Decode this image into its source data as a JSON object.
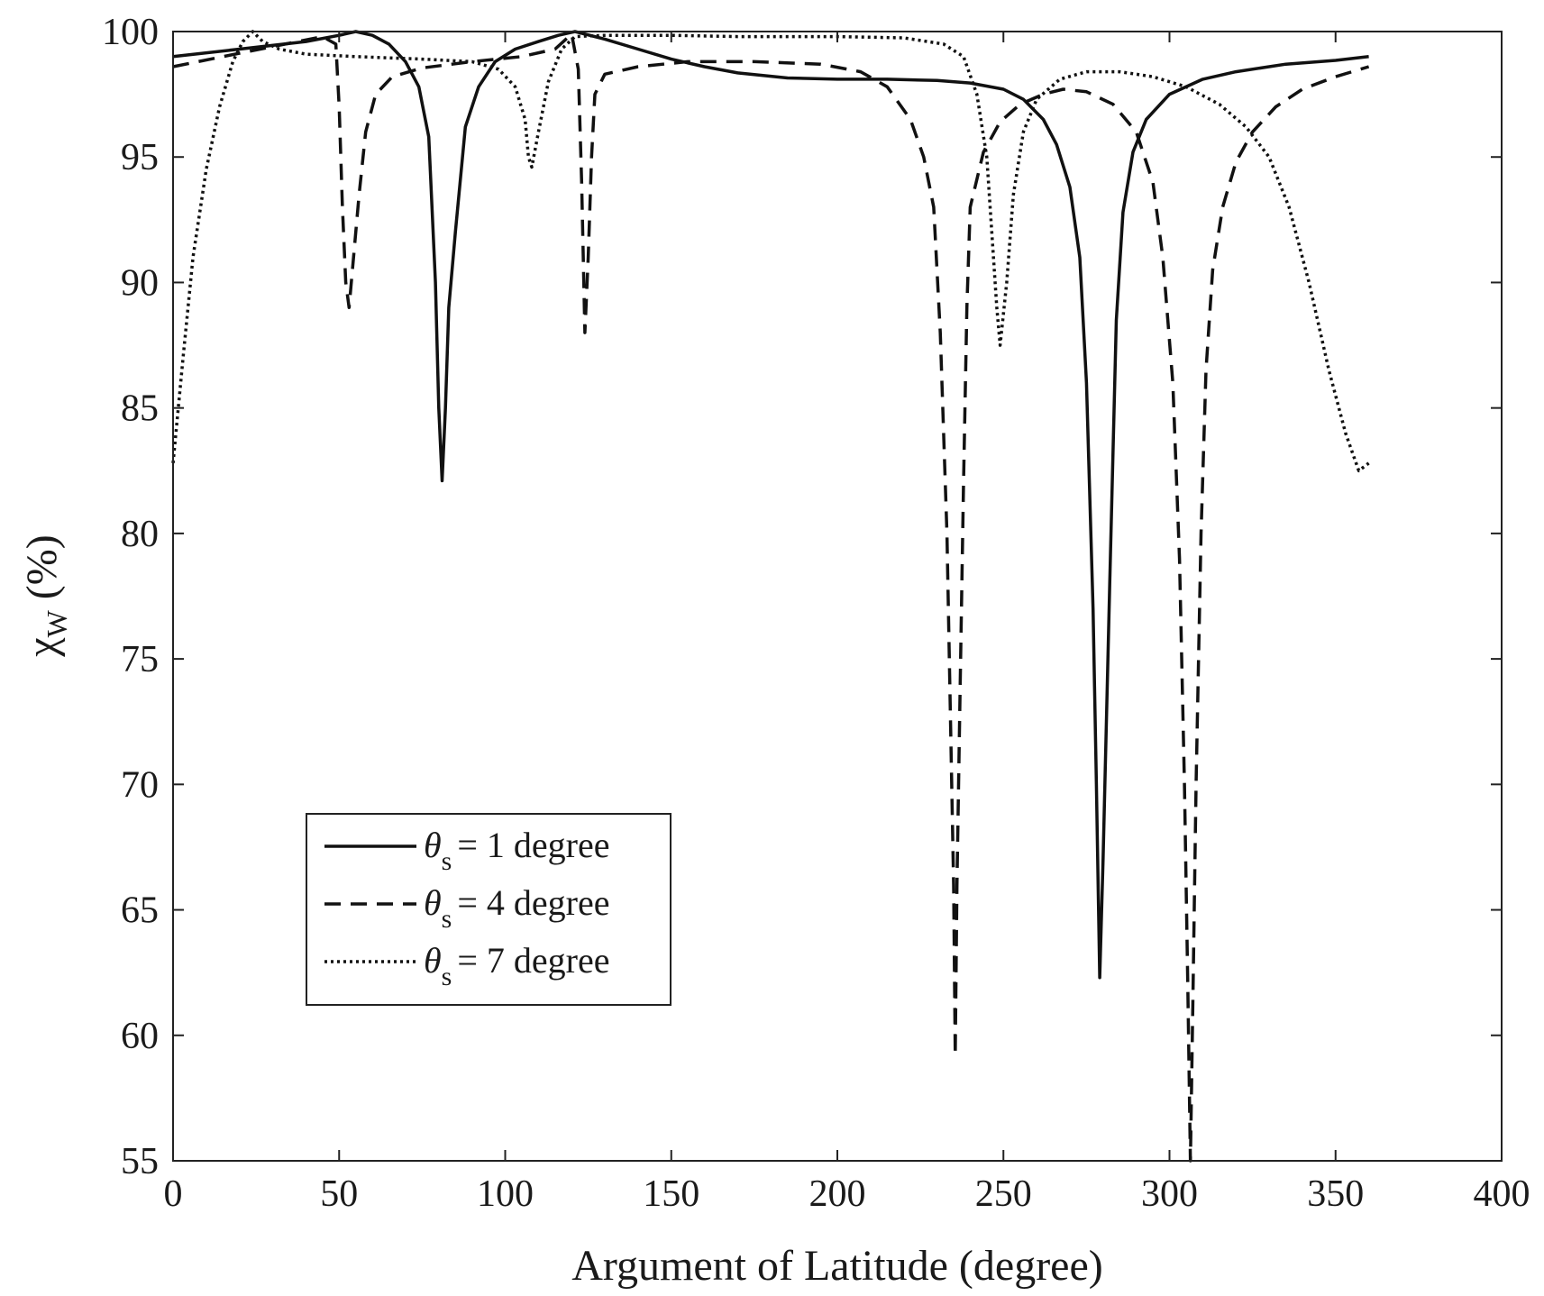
{
  "chart_data": {
    "type": "line",
    "xlabel": "Argument of Latitude (degree)",
    "ylabel": {
      "symbol": "χ",
      "subscript": "W",
      "unit": "(%)"
    },
    "xlim": [
      0,
      400
    ],
    "ylim": [
      55,
      100
    ],
    "xticks": [
      0,
      50,
      100,
      150,
      200,
      250,
      300,
      350,
      400
    ],
    "yticks": [
      55,
      60,
      65,
      70,
      75,
      80,
      85,
      90,
      95,
      100
    ],
    "grid": false,
    "legend_position": "lower-left",
    "series": [
      {
        "name": "= 1 degree",
        "legend_symbol": "θ",
        "legend_subscript": "s",
        "style": "solid",
        "points": [
          [
            0,
            99.0
          ],
          [
            20,
            99.3
          ],
          [
            40,
            99.6
          ],
          [
            50,
            99.85
          ],
          [
            55,
            100.0
          ],
          [
            60,
            99.85
          ],
          [
            65,
            99.5
          ],
          [
            70,
            98.8
          ],
          [
            74,
            97.8
          ],
          [
            77,
            95.8
          ],
          [
            79,
            90.0
          ],
          [
            80,
            85.0
          ],
          [
            81,
            82.1
          ],
          [
            82,
            85.0
          ],
          [
            83,
            89.0
          ],
          [
            85,
            92.0
          ],
          [
            88,
            96.2
          ],
          [
            92,
            97.8
          ],
          [
            97,
            98.8
          ],
          [
            103,
            99.3
          ],
          [
            110,
            99.6
          ],
          [
            116,
            99.85
          ],
          [
            121,
            100.0
          ],
          [
            130,
            99.7
          ],
          [
            140,
            99.3
          ],
          [
            150,
            98.9
          ],
          [
            160,
            98.6
          ],
          [
            170,
            98.35
          ],
          [
            185,
            98.15
          ],
          [
            200,
            98.1
          ],
          [
            215,
            98.1
          ],
          [
            230,
            98.05
          ],
          [
            240,
            97.95
          ],
          [
            250,
            97.7
          ],
          [
            256,
            97.3
          ],
          [
            262,
            96.5
          ],
          [
            266,
            95.5
          ],
          [
            270,
            93.8
          ],
          [
            273,
            91.0
          ],
          [
            275,
            86.0
          ],
          [
            277,
            77.0
          ],
          [
            278,
            70.0
          ],
          [
            279,
            62.3
          ],
          [
            280,
            67.0
          ],
          [
            282,
            78.0
          ],
          [
            284,
            88.5
          ],
          [
            286,
            92.8
          ],
          [
            289,
            95.2
          ],
          [
            293,
            96.5
          ],
          [
            300,
            97.5
          ],
          [
            310,
            98.1
          ],
          [
            320,
            98.4
          ],
          [
            335,
            98.7
          ],
          [
            350,
            98.85
          ],
          [
            360,
            99.0
          ]
        ]
      },
      {
        "name": "= 4 degree",
        "legend_symbol": "θ",
        "legend_subscript": "s",
        "style": "dashed",
        "points": [
          [
            0,
            98.6
          ],
          [
            15,
            99.0
          ],
          [
            30,
            99.4
          ],
          [
            45,
            99.8
          ],
          [
            49,
            99.5
          ],
          [
            50,
            97.0
          ],
          [
            51,
            93.0
          ],
          [
            52,
            90.0
          ],
          [
            53,
            89.0
          ],
          [
            54,
            90.5
          ],
          [
            56,
            93.5
          ],
          [
            58,
            96.0
          ],
          [
            61,
            97.5
          ],
          [
            66,
            98.2
          ],
          [
            75,
            98.55
          ],
          [
            90,
            98.8
          ],
          [
            105,
            99.0
          ],
          [
            115,
            99.3
          ],
          [
            120,
            99.9
          ],
          [
            122,
            98.5
          ],
          [
            123,
            94.0
          ],
          [
            124,
            88.0
          ],
          [
            125,
            91.0
          ],
          [
            126,
            95.0
          ],
          [
            127,
            97.5
          ],
          [
            130,
            98.3
          ],
          [
            140,
            98.6
          ],
          [
            155,
            98.8
          ],
          [
            175,
            98.8
          ],
          [
            195,
            98.7
          ],
          [
            207,
            98.4
          ],
          [
            215,
            97.8
          ],
          [
            222,
            96.5
          ],
          [
            226,
            95.0
          ],
          [
            229,
            93.0
          ],
          [
            231,
            88.0
          ],
          [
            233,
            80.0
          ],
          [
            234,
            73.0
          ],
          [
            235,
            66.0
          ],
          [
            235.5,
            59.2
          ],
          [
            236,
            66.0
          ],
          [
            237,
            74.0
          ],
          [
            238,
            82.0
          ],
          [
            239,
            89.0
          ],
          [
            240,
            93.0
          ],
          [
            244,
            95.2
          ],
          [
            249,
            96.4
          ],
          [
            255,
            97.1
          ],
          [
            262,
            97.5
          ],
          [
            268,
            97.7
          ],
          [
            275,
            97.6
          ],
          [
            283,
            97.1
          ],
          [
            290,
            96.0
          ],
          [
            295,
            94.0
          ],
          [
            298,
            91.0
          ],
          [
            301,
            86.0
          ],
          [
            303,
            79.0
          ],
          [
            304.5,
            70.0
          ],
          [
            305.5,
            62.0
          ],
          [
            306.3,
            55.0
          ],
          [
            307,
            61.0
          ],
          [
            308,
            70.0
          ],
          [
            309.5,
            80.0
          ],
          [
            311,
            86.5
          ],
          [
            313,
            90.5
          ],
          [
            316,
            93.0
          ],
          [
            320,
            94.8
          ],
          [
            325,
            96.0
          ],
          [
            332,
            97.0
          ],
          [
            340,
            97.7
          ],
          [
            350,
            98.2
          ],
          [
            360,
            98.6
          ]
        ]
      },
      {
        "name": "= 7 degree",
        "legend_symbol": "θ",
        "legend_subscript": "s",
        "style": "dotted",
        "points": [
          [
            0,
            82.8
          ],
          [
            3,
            87.0
          ],
          [
            6,
            91.0
          ],
          [
            10,
            94.5
          ],
          [
            14,
            97.0
          ],
          [
            18,
            98.8
          ],
          [
            21,
            99.6
          ],
          [
            24,
            100.0
          ],
          [
            27,
            99.6
          ],
          [
            32,
            99.3
          ],
          [
            40,
            99.1
          ],
          [
            55,
            99.0
          ],
          [
            75,
            98.9
          ],
          [
            90,
            98.8
          ],
          [
            98,
            98.5
          ],
          [
            103,
            97.8
          ],
          [
            106,
            96.5
          ],
          [
            107,
            95.0
          ],
          [
            108,
            94.6
          ],
          [
            110,
            96.0
          ],
          [
            113,
            98.0
          ],
          [
            117,
            99.3
          ],
          [
            121,
            99.8
          ],
          [
            130,
            99.85
          ],
          [
            150,
            99.85
          ],
          [
            170,
            99.8
          ],
          [
            200,
            99.8
          ],
          [
            220,
            99.75
          ],
          [
            232,
            99.5
          ],
          [
            238,
            99.0
          ],
          [
            242,
            97.5
          ],
          [
            245,
            95.0
          ],
          [
            247,
            91.0
          ],
          [
            248,
            89.0
          ],
          [
            249,
            87.5
          ],
          [
            251,
            90.0
          ],
          [
            253,
            93.5
          ],
          [
            256,
            96.0
          ],
          [
            260,
            97.3
          ],
          [
            267,
            98.1
          ],
          [
            275,
            98.4
          ],
          [
            285,
            98.4
          ],
          [
            295,
            98.2
          ],
          [
            305,
            97.8
          ],
          [
            315,
            97.1
          ],
          [
            323,
            96.2
          ],
          [
            330,
            95.0
          ],
          [
            336,
            93.0
          ],
          [
            342,
            90.0
          ],
          [
            348,
            86.5
          ],
          [
            353,
            84.0
          ],
          [
            357,
            82.5
          ],
          [
            360,
            82.8
          ]
        ]
      }
    ]
  }
}
